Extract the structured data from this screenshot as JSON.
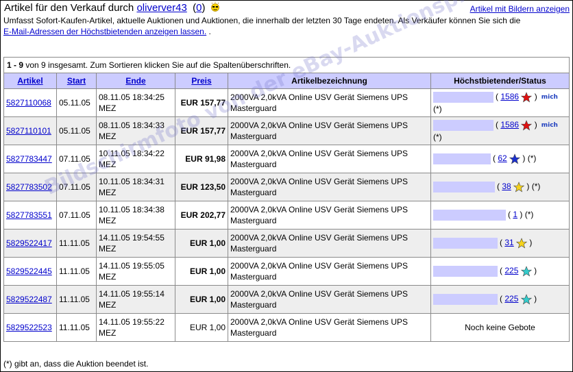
{
  "header": {
    "title_prefix": "Artikel für den Verkauf durch",
    "seller": "oliverver43",
    "feedback_open": "(",
    "feedback_count": "0",
    "feedback_close": ")",
    "show_pictures_link": "Artikel mit Bildern anzeigen"
  },
  "description": {
    "text": "Umfasst Sofort-Kaufen-Artikel, aktuelle Auktionen und Auktionen, die innerhalb der letzten 30 Tage endeten. Als Verkäufer können Sie sich die",
    "email_link": "E-Mail-Adressen der Höchstbietenden anzeigen lassen.",
    "trailing": "."
  },
  "table": {
    "info_range": "1 - 9",
    "info_rest": " von 9 insgesamt. Zum Sortieren klicken Sie auf die Spaltenüberschriften.",
    "columns": {
      "item": "Artikel",
      "start": "Start",
      "end": "Ende",
      "price": "Preis",
      "title": "Artikelbezeichnung",
      "bidder": "Höchstbietender/Status"
    },
    "rows": [
      {
        "item": "5827110068",
        "start": "05.11.05",
        "end1": "08.11.05 18:34:25",
        "end2": "MEZ",
        "price": "EUR 157,77",
        "title": "2000VA 2,0kVA Online USV Gerät Siemens UPS Masterguard",
        "rating": "1586",
        "ended": "(*)",
        "star": "red",
        "me": true
      },
      {
        "item": "5827110101",
        "start": "05.11.05",
        "end1": "08.11.05 18:34:33",
        "end2": "MEZ",
        "price": "EUR 157,77",
        "title": "2000VA 2,0kVA Online USV Gerät Siemens UPS Masterguard",
        "rating": "1586",
        "ended": "(*)",
        "star": "red",
        "me": true
      },
      {
        "item": "5827783447",
        "start": "07.11.05",
        "end1": "10.11.05 18:34:22",
        "end2": "MEZ",
        "price": "EUR 91,98",
        "title": "2000VA 2,0kVA Online USV Gerät Siemens UPS Masterguard",
        "rating": "62",
        "ended": "(*)",
        "star": "blue",
        "me": false
      },
      {
        "item": "5827783502",
        "start": "07.11.05",
        "end1": "10.11.05 18:34:31",
        "end2": "MEZ",
        "price": "EUR 123,50",
        "title": "2000VA 2,0kVA Online USV Gerät Siemens UPS Masterguard",
        "rating": "38",
        "ended": "(*)",
        "star": "yellow",
        "me": false
      },
      {
        "item": "5827783551",
        "start": "07.11.05",
        "end1": "10.11.05 18:34:38",
        "end2": "MEZ",
        "price": "EUR 202,77",
        "title": "2000VA 2,0kVA Online USV Gerät Siemens UPS Masterguard",
        "rating": "1",
        "ended": "(*)",
        "star": "",
        "me": false
      },
      {
        "item": "5829522417",
        "start": "11.11.05",
        "end1": "14.11.05 19:54:55",
        "end2": "MEZ",
        "price": "EUR 1,00",
        "title": "2000VA 2,0kVA Online USV Gerät Siemens UPS Masterguard",
        "rating": "31",
        "ended": "",
        "star": "yellow",
        "me": false
      },
      {
        "item": "5829522445",
        "start": "11.11.05",
        "end1": "14.11.05 19:55:05",
        "end2": "MEZ",
        "price": "EUR 1,00",
        "title": "2000VA 2,0kVA Online USV Gerät Siemens UPS Masterguard",
        "rating": "225",
        "ended": "",
        "star": "turquoise",
        "me": false
      },
      {
        "item": "5829522487",
        "start": "11.11.05",
        "end1": "14.11.05 19:55:14",
        "end2": "MEZ",
        "price": "EUR 1,00",
        "title": "2000VA 2,0kVA Online USV Gerät Siemens UPS Masterguard",
        "rating": "225",
        "ended": "",
        "star": "turquoise",
        "me": false
      },
      {
        "item": "5829522523",
        "start": "11.11.05",
        "end1": "14.11.05 19:55:22",
        "end2": "MEZ",
        "price": "EUR 1,00",
        "title": "2000VA 2,0kVA Online USV Gerät Siemens UPS Masterguard",
        "rating": "",
        "ended": "",
        "star": "",
        "me": false,
        "no_bids": "Noch keine Gebote"
      }
    ],
    "rating_open": "(",
    "rating_close": ")"
  },
  "footnote": "(*) gibt an, dass die Auktion beendet ist.",
  "watermark": "Bildschirmfoto von der eBay-Auktionsplattform",
  "me_badge": {
    "m": "m",
    "rest": "ich"
  },
  "colors": {
    "header_bg": "#ccccff",
    "alt_row": "#eeeeee",
    "link": "#0000cc",
    "star_red": "#e01010",
    "star_blue": "#1a2fd0",
    "star_yellow": "#f5d21b",
    "star_turquoise": "#33cccc"
  },
  "icons": {
    "praise": "sunglasses-feedback-icon",
    "star": "feedback-star-icon"
  }
}
